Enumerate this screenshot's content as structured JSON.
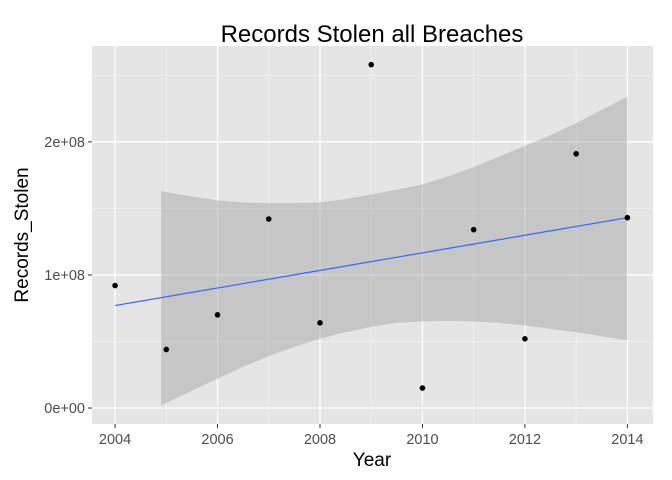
{
  "chart_data": {
    "type": "scatter",
    "title": "Records Stolen all Breaches",
    "xlabel": "Year",
    "ylabel": "Records_Stolen",
    "xlim": [
      2003.55,
      2014.5
    ],
    "ylim": [
      -12000000,
      272000000
    ],
    "x_ticks": [
      2004,
      2006,
      2008,
      2010,
      2012,
      2014
    ],
    "x_tick_labels": [
      "2004",
      "2006",
      "2008",
      "2010",
      "2012",
      "2014"
    ],
    "y_ticks": [
      0,
      100000000,
      200000000
    ],
    "y_tick_labels": [
      "0e+00",
      "1e+08",
      "2e+08"
    ],
    "grid": true,
    "points": [
      {
        "x": 2004,
        "y": 92000000
      },
      {
        "x": 2005,
        "y": 44000000
      },
      {
        "x": 2006,
        "y": 70000000
      },
      {
        "x": 2007,
        "y": 142000000
      },
      {
        "x": 2008,
        "y": 64000000
      },
      {
        "x": 2009,
        "y": 258000000
      },
      {
        "x": 2010,
        "y": 15000000
      },
      {
        "x": 2011,
        "y": 134000000
      },
      {
        "x": 2012,
        "y": 52000000
      },
      {
        "x": 2013,
        "y": 191000000
      },
      {
        "x": 2014,
        "y": 143000000
      }
    ],
    "trend_line": {
      "x": [
        2004,
        2014
      ],
      "y": [
        77000000,
        143000000
      ],
      "color": "#3366ff"
    },
    "confidence_band": {
      "x": [
        2004.9,
        2005.5,
        2006,
        2006.5,
        2007,
        2007.5,
        2008,
        2008.5,
        2009,
        2009.5,
        2010,
        2010.5,
        2011,
        2011.5,
        2012,
        2012.5,
        2013,
        2013.5,
        2014
      ],
      "upper": [
        163000000,
        159000000,
        156000000,
        154500000,
        154000000,
        154000000,
        154500000,
        157000000,
        160500000,
        164000000,
        168000000,
        174000000,
        181000000,
        189000000,
        197000000,
        205000000,
        214000000,
        224000000,
        234000000
      ],
      "lower": [
        2000000,
        13000000,
        22000000,
        31000000,
        39000000,
        46000000,
        52000000,
        57000000,
        61000000,
        64000000,
        65000000,
        65500000,
        65000000,
        64000000,
        62000000,
        59500000,
        57000000,
        54000000,
        51000000
      ],
      "color": "#999999"
    },
    "point_color": "#000000",
    "panel_color": "#e5e5e5",
    "grid_color": "#ffffff"
  }
}
